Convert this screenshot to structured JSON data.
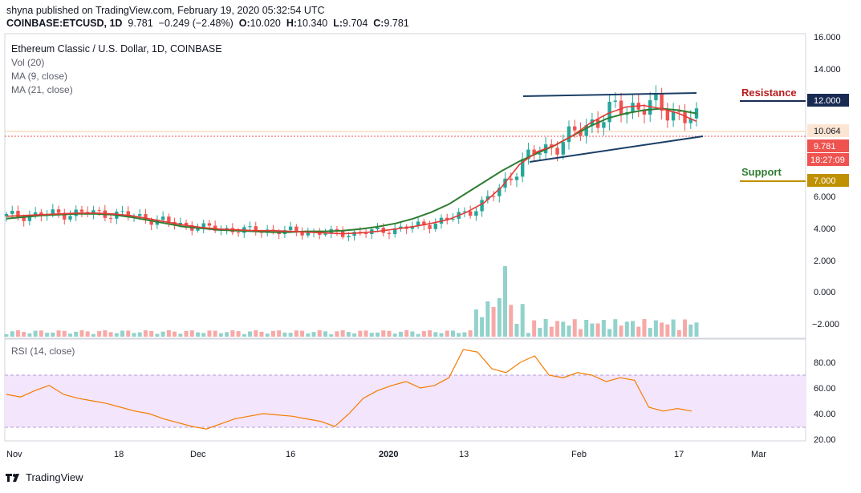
{
  "header": {
    "published": "shyna published on TradingView.com, February 19, 2020 05:32:54 UTC",
    "symbol": "COINBASE:ETCUSD, 1D",
    "last": "9.781",
    "change": "−0.249 (−2.48%)",
    "o_label": "O:",
    "o": "10.020",
    "h_label": "H:",
    "h": "10.340",
    "l_label": "L:",
    "l": "9.704",
    "c_label": "C:",
    "c": "9.781"
  },
  "legend": {
    "title": "Ethereum Classic / U.S. Dollar, 1D, COINBASE",
    "vol": "Vol (20)",
    "ma9": "MA (9, close)",
    "ma21": "MA (21, close)",
    "rsi": "RSI (14, close)"
  },
  "annotations": {
    "resistance": "Resistance",
    "support": "Support",
    "resistance_price": "12.000",
    "support_price": "7.000",
    "current_price": "10.064",
    "last_price": "9.781",
    "countdown": "18:27:09"
  },
  "colors": {
    "up": "#26a69a",
    "down": "#ef5350",
    "ma9": "#e53935",
    "ma21": "#2e7d32",
    "rsi_line": "#f57c00",
    "rsi_band": "#f3e5fb",
    "resistance": "#b71c1c",
    "support": "#2e7d32",
    "trendline": "#1a3e66",
    "res_label_bg": "#1a2b52",
    "sup_label_bg": "#bf9000"
  },
  "price_axis": [
    "16.000",
    "14.000",
    "12.000",
    "10.064",
    "9.781",
    "6.000",
    "4.000",
    "2.000",
    "0.000",
    "−2.000"
  ],
  "rsi_axis": [
    "80.00",
    "60.00",
    "40.00",
    "20.00"
  ],
  "x_axis": [
    "Nov",
    "18",
    "Dec",
    "16",
    "2020",
    "13",
    "Feb",
    "17",
    "Mar"
  ],
  "footer": {
    "brand": "TradingView"
  },
  "chart_data": {
    "type": "candlestick",
    "ma9": [
      4.75,
      4.8,
      4.85,
      4.9,
      4.95,
      4.95,
      4.9,
      4.8,
      4.6,
      4.4,
      4.2,
      4.05,
      3.95,
      3.9,
      3.85,
      3.85,
      3.8,
      3.75,
      3.7,
      3.65,
      3.7,
      3.8,
      3.95,
      4.1,
      4.3,
      4.55,
      5.0,
      5.6,
      6.6,
      8.0,
      8.8,
      9.2,
      9.8,
      10.6,
      11.2,
      11.6,
      11.7,
      11.5,
      11.2,
      10.7
    ],
    "ma21": [
      4.6,
      4.7,
      4.8,
      4.85,
      4.9,
      4.9,
      4.85,
      4.7,
      4.5,
      4.3,
      4.1,
      4.0,
      3.9,
      3.85,
      3.8,
      3.75,
      3.75,
      3.8,
      3.8,
      3.85,
      3.95,
      4.1,
      4.3,
      4.6,
      5.0,
      5.5,
      6.2,
      6.9,
      7.6,
      8.2,
      8.7,
      9.2,
      9.8,
      10.4,
      10.9,
      11.2,
      11.4,
      11.5,
      11.4,
      11.2
    ],
    "rsi": [
      55,
      53,
      58,
      62,
      55,
      52,
      50,
      48,
      45,
      42,
      40,
      36,
      33,
      30,
      28,
      32,
      36,
      38,
      40,
      39,
      38,
      36,
      34,
      30,
      40,
      52,
      58,
      62,
      65,
      60,
      62,
      68,
      90,
      88,
      75,
      72,
      80,
      85,
      70,
      68,
      72,
      70,
      65,
      68,
      66,
      45,
      42,
      44,
      42
    ]
  }
}
